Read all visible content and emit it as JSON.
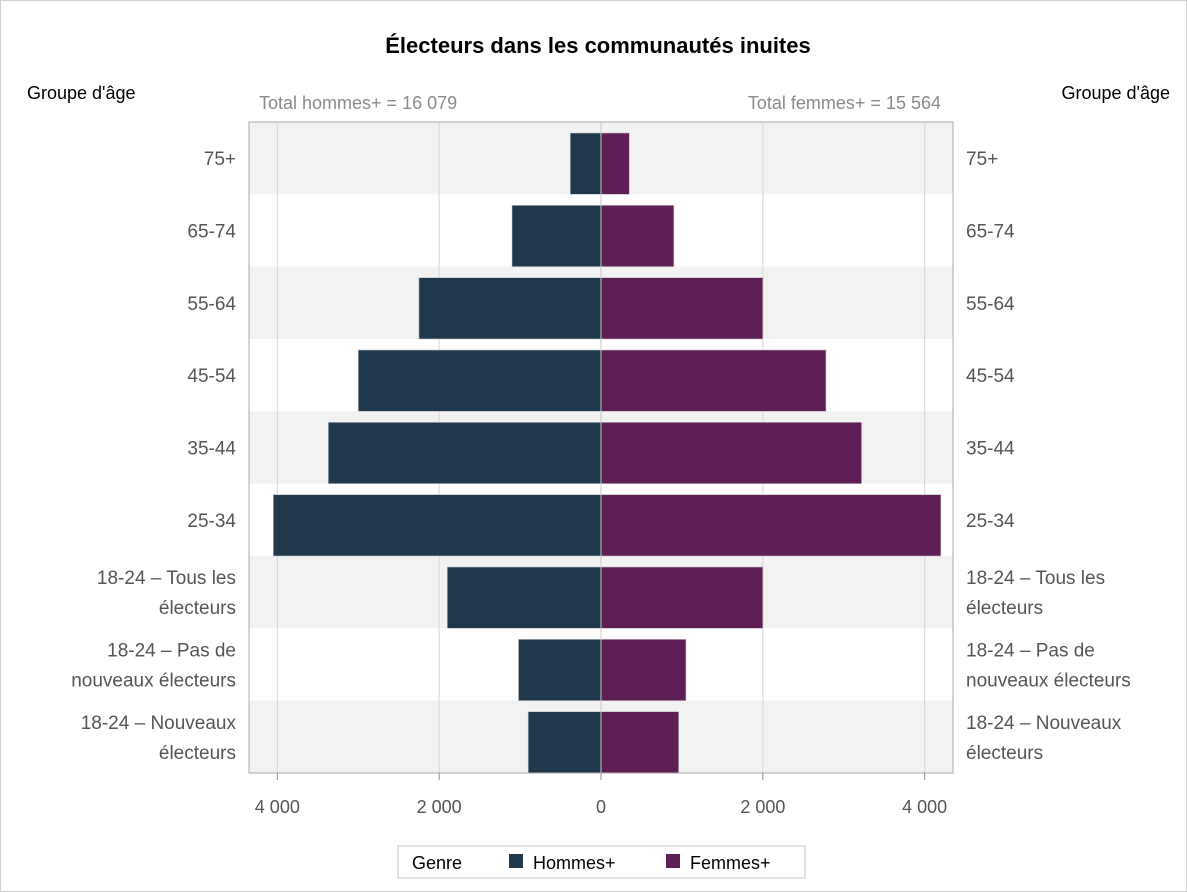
{
  "chart_data": {
    "type": "bar",
    "orientation": "horizontal",
    "layout": "population-pyramid",
    "title": "Électeurs dans les communautés inuites",
    "left_axis_header": "Groupe d'âge",
    "right_axis_header": "Groupe d'âge",
    "total_left_label": "Total hommes+ = 16 079",
    "total_right_label": "Total femmes+ = 15 564",
    "categories": [
      "75+",
      "65-74",
      "55-64",
      "45-54",
      "35-44",
      "25-34",
      "18-24 – Tous les électeurs",
      "18-24 – Pas de nouveaux électeurs",
      "18-24 – Nouveaux électeurs"
    ],
    "category_lines_left": [
      [
        "75+"
      ],
      [
        "65-74"
      ],
      [
        "55-64"
      ],
      [
        "45-54"
      ],
      [
        "35-44"
      ],
      [
        "25-34"
      ],
      [
        "18-24 – Tous les",
        "électeurs"
      ],
      [
        "18-24 – Pas de",
        "nouveaux électeurs"
      ],
      [
        "18-24 – Nouveaux",
        "électeurs"
      ]
    ],
    "category_lines_right": [
      [
        "75+"
      ],
      [
        "65-74"
      ],
      [
        "55-64"
      ],
      [
        "45-54"
      ],
      [
        "35-44"
      ],
      [
        "25-34"
      ],
      [
        "18-24 – Tous les",
        "électeurs"
      ],
      [
        "18-24 – Pas de",
        "nouveaux électeurs"
      ],
      [
        "18-24 – Nouveaux",
        "électeurs"
      ]
    ],
    "series": [
      {
        "name": "Hommes+",
        "color": "#1f384b",
        "side": "left",
        "values": [
          380,
          1100,
          2250,
          3000,
          3370,
          4050,
          1900,
          1020,
          900
        ]
      },
      {
        "name": "Femmes+",
        "color": "#5e1f57",
        "side": "right",
        "values": [
          350,
          900,
          2000,
          2780,
          3220,
          4200,
          2000,
          1050,
          960
        ]
      }
    ],
    "xlim": [
      -4350,
      4350
    ],
    "xticks": [
      -4000,
      -2000,
      0,
      2000,
      4000
    ],
    "xtick_labels": [
      "4 000",
      "2 000",
      "0",
      "2 000",
      "4 000"
    ],
    "grid": true,
    "band_colors": [
      "#f2f2f2",
      "#ffffff"
    ],
    "legend": {
      "title": "Genre",
      "position": "bottom-center",
      "items": [
        "Hommes+",
        "Femmes+"
      ]
    }
  }
}
